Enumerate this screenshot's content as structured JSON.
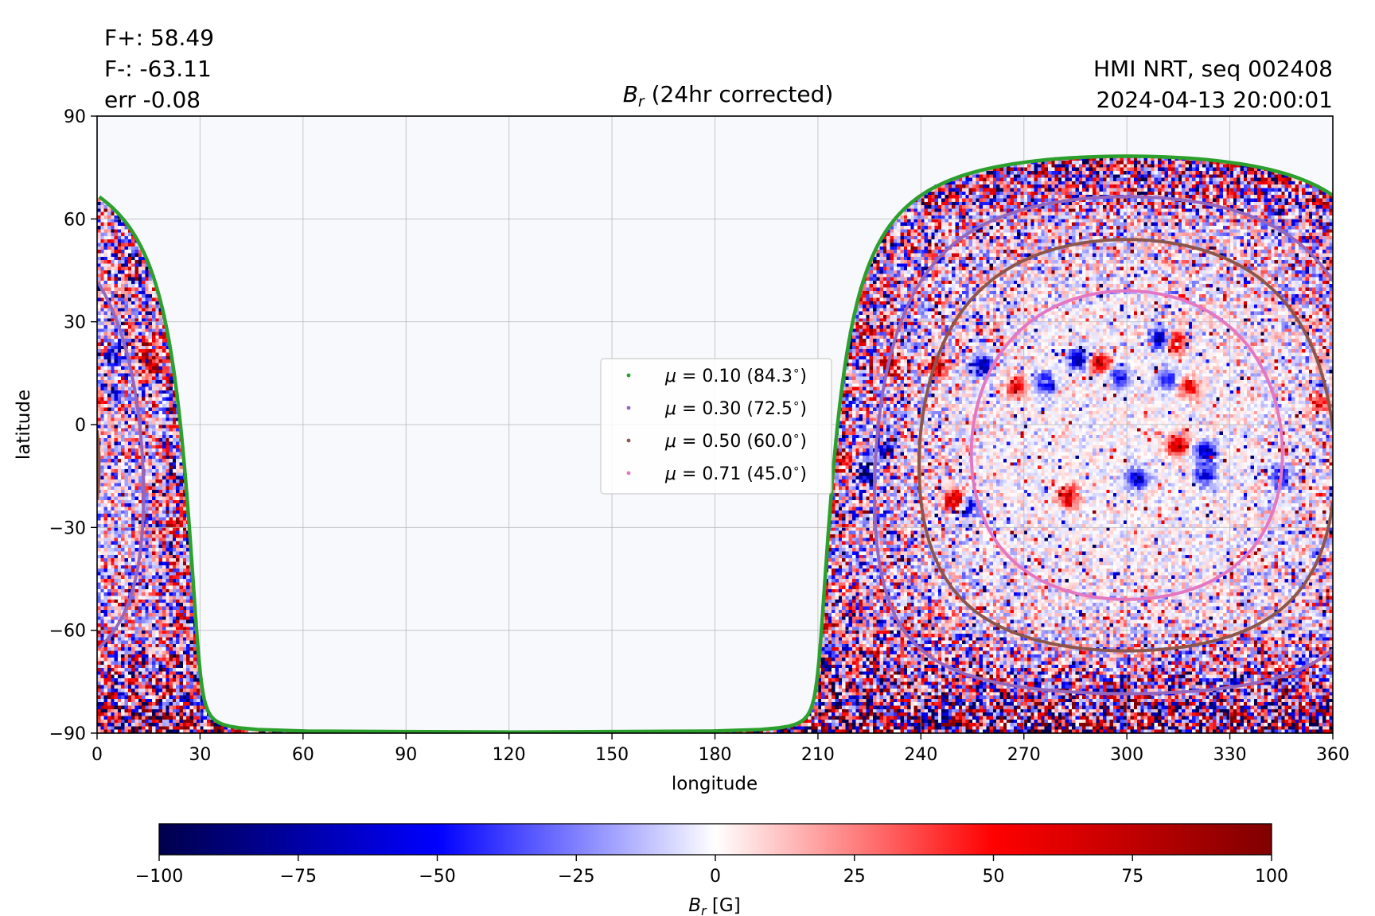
{
  "header": {
    "flux_pos": "F+: 58.49",
    "flux_neg": "F-: -63.11",
    "err": "err -0.08",
    "instrument": "HMI NRT, seq 002408",
    "timestamp": "2024-04-13 20:00:01"
  },
  "chart_data": {
    "type": "heatmap",
    "title": "B_r (24hr corrected)",
    "title_parts": {
      "symbol": "B",
      "sub": "r",
      "rest": " (24hr corrected)"
    },
    "xlabel": "longitude",
    "ylabel": "latitude",
    "xlim": [
      0,
      360
    ],
    "ylim": [
      -90,
      90
    ],
    "xticks": [
      0,
      30,
      60,
      90,
      120,
      150,
      180,
      210,
      240,
      270,
      300,
      330,
      360
    ],
    "yticks": [
      90,
      60,
      30,
      0,
      -30,
      -60,
      -90
    ],
    "ytick_labels": [
      "90",
      "60",
      "30",
      "0",
      "−30",
      "−60",
      "−90"
    ],
    "grid": true,
    "background_color": "#f8f9fd",
    "disk_center": {
      "lon": 300,
      "lat": -6
    },
    "features": [
      {
        "lon": 310,
        "lat": 25,
        "value": -85
      },
      {
        "lon": 314,
        "lat": 24,
        "value": 80
      },
      {
        "lon": 286,
        "lat": 19,
        "value": -75
      },
      {
        "lon": 292,
        "lat": 18,
        "value": 75
      },
      {
        "lon": 318,
        "lat": 11,
        "value": 55
      },
      {
        "lon": 312,
        "lat": 13,
        "value": -50
      },
      {
        "lon": 298,
        "lat": 14,
        "value": -55
      },
      {
        "lon": 222,
        "lat": 26,
        "value": 80
      },
      {
        "lon": 219,
        "lat": 26,
        "value": -85
      },
      {
        "lon": 231,
        "lat": 16,
        "value": 85
      },
      {
        "lon": 245,
        "lat": 17,
        "value": 70
      },
      {
        "lon": 258,
        "lat": 17,
        "value": -75
      },
      {
        "lon": 268,
        "lat": 11,
        "value": 55
      },
      {
        "lon": 276,
        "lat": 12,
        "value": -55
      },
      {
        "lon": 218,
        "lat": -10,
        "value": 85
      },
      {
        "lon": 224,
        "lat": -14,
        "value": -85
      },
      {
        "lon": 230,
        "lat": -6,
        "value": -70
      },
      {
        "lon": 250,
        "lat": -22,
        "value": 80
      },
      {
        "lon": 254,
        "lat": -24,
        "value": -70
      },
      {
        "lon": 283,
        "lat": -21,
        "value": 70
      },
      {
        "lon": 303,
        "lat": -16,
        "value": -65
      },
      {
        "lon": 315,
        "lat": -6,
        "value": 75
      },
      {
        "lon": 323,
        "lat": -8,
        "value": -70
      },
      {
        "lon": 323,
        "lat": -15,
        "value": -60
      },
      {
        "lon": 345,
        "lat": -15,
        "value": -55
      },
      {
        "lon": 356,
        "lat": 7,
        "value": 60
      },
      {
        "lon": 357,
        "lat": 10,
        "value": -50
      },
      {
        "lon": 4,
        "lat": 9,
        "value": -90
      },
      {
        "lon": 2,
        "lat": 8,
        "value": 80
      },
      {
        "lon": 5,
        "lat": 20,
        "value": -60
      },
      {
        "lon": 15,
        "lat": 22,
        "value": 70
      },
      {
        "lon": 17,
        "lat": 17,
        "value": 60
      },
      {
        "lon": 23,
        "lat": -30,
        "value": 55
      }
    ],
    "series": [
      {
        "name": "μ = 0.10 (84.3°)",
        "color": "#2ca02c",
        "angle_deg": 84.3
      },
      {
        "name": "μ = 0.30 (72.5°)",
        "color": "#9467bd",
        "angle_deg": 72.5
      },
      {
        "name": "μ = 0.50 (60.0°)",
        "color": "#8c564b",
        "angle_deg": 60.0
      },
      {
        "name": "μ = 0.71 (45.0°)",
        "color": "#e377c2",
        "angle_deg": 45.0
      }
    ],
    "legend_labels": [
      {
        "val": "0.10",
        "ang": "(84.3",
        "deg": "∘",
        "close": ")"
      },
      {
        "val": "0.30",
        "ang": "(72.5",
        "deg": "∘",
        "close": ")"
      },
      {
        "val": "0.50",
        "ang": "(60.0",
        "deg": "∘",
        "close": ")"
      },
      {
        "val": "0.71",
        "ang": "(45.0",
        "deg": "∘",
        "close": ")"
      }
    ],
    "legend_mu": "μ",
    "legend_eq": " = ",
    "legend_placement": "center",
    "colorbar": {
      "label_symbol": "B",
      "label_sub": "r",
      "label_unit": " [G]",
      "range": [
        -100,
        100
      ],
      "ticks": [
        -100,
        -75,
        -50,
        -25,
        0,
        25,
        50,
        75,
        100
      ],
      "tick_labels": [
        "−100",
        "−75",
        "−50",
        "−25",
        "0",
        "25",
        "50",
        "75",
        "100"
      ],
      "colormap": "seismic",
      "stops": [
        "#00004c",
        "#0000ff",
        "#ffffff",
        "#ff0000",
        "#800000"
      ]
    }
  }
}
